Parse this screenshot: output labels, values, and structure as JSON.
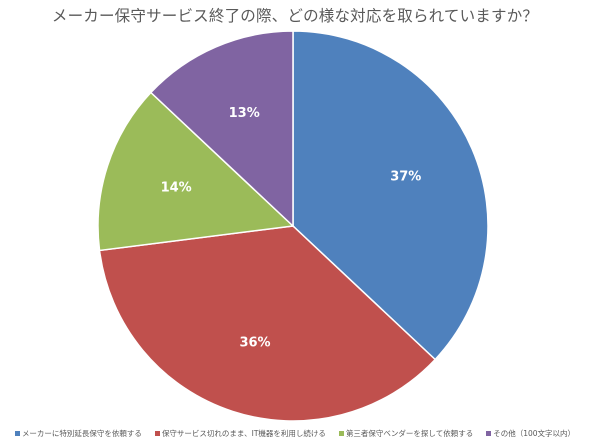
{
  "chart_data": {
    "type": "pie",
    "title": "メーカー保守サービス終了の際、どの様な対応を取られていますか？",
    "categories": [
      "メーカーに特別延長保守を依頼する",
      "保守サービス切れのまま、IT機器を利用し続ける",
      "第三者保守ベンダーを探して依頼する",
      "その他（100文字以内）"
    ],
    "values": [
      37,
      36,
      14,
      13
    ],
    "data_labels": [
      "37%",
      "36%",
      "14%",
      "13%"
    ],
    "colors": [
      "#4f81bd",
      "#c0504d",
      "#9bbb59",
      "#8064a2"
    ],
    "start_angle": "12 o'clock",
    "direction": "clockwise",
    "legend_position": "bottom"
  }
}
